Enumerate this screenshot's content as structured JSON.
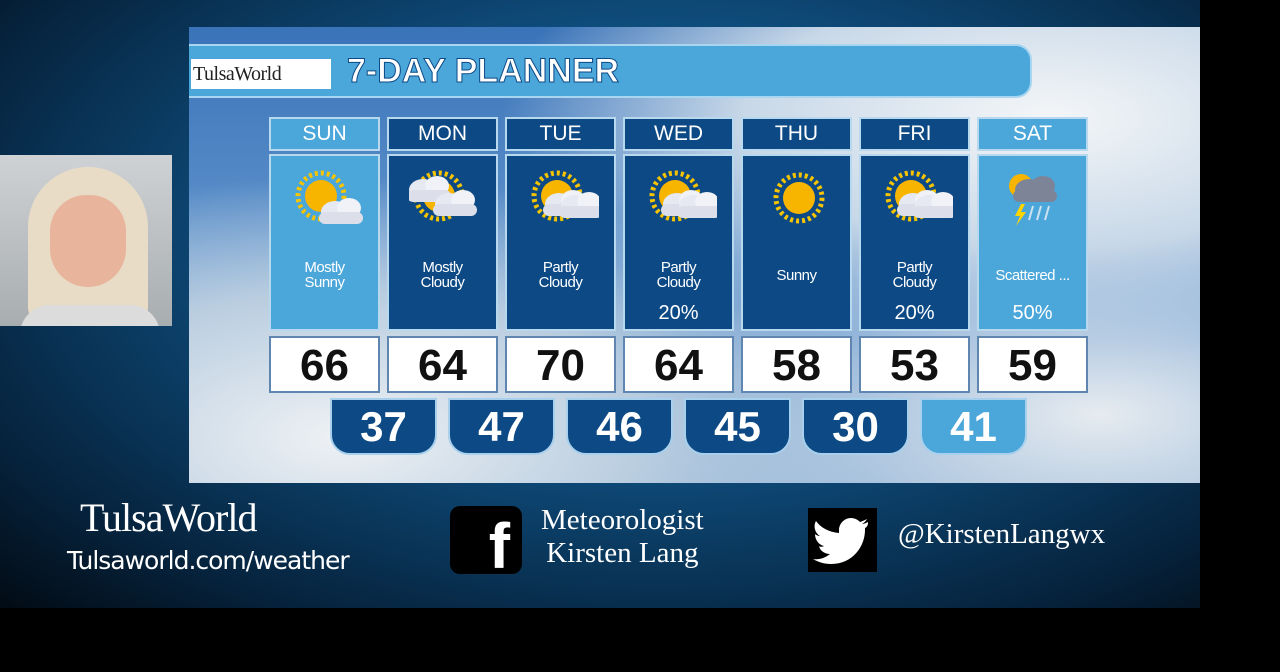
{
  "graphic": {
    "logo": "TulsaWorld",
    "title": "7-DAY PLANNER"
  },
  "days": [
    {
      "day": "SUN",
      "condition": "Mostly Sunny",
      "precip": "",
      "high": "66",
      "icon": "mostly-sunny-icon",
      "theme": "light"
    },
    {
      "day": "MON",
      "condition": "Mostly Cloudy",
      "precip": "",
      "high": "64",
      "icon": "mostly-cloudy-icon",
      "theme": "dark"
    },
    {
      "day": "TUE",
      "condition": "Partly Cloudy",
      "precip": "",
      "high": "70",
      "icon": "partly-cloudy-icon",
      "theme": "dark"
    },
    {
      "day": "WED",
      "condition": "Partly Cloudy",
      "precip": "20%",
      "high": "64",
      "icon": "partly-cloudy-icon",
      "theme": "dark"
    },
    {
      "day": "THU",
      "condition": "Sunny",
      "precip": "",
      "high": "58",
      "icon": "sunny-icon",
      "theme": "dark"
    },
    {
      "day": "FRI",
      "condition": "Partly Cloudy",
      "precip": "20%",
      "high": "53",
      "icon": "partly-cloudy-icon",
      "theme": "dark"
    },
    {
      "day": "SAT",
      "condition": "Scattered ...",
      "precip": "50%",
      "high": "59",
      "icon": "thunderstorm-icon",
      "theme": "light"
    }
  ],
  "lows": [
    {
      "v": "37",
      "theme": "dark"
    },
    {
      "v": "47",
      "theme": "dark"
    },
    {
      "v": "46",
      "theme": "dark"
    },
    {
      "v": "45",
      "theme": "dark"
    },
    {
      "v": "30",
      "theme": "dark"
    },
    {
      "v": "41",
      "theme": "light"
    }
  ],
  "footer": {
    "brand": "TulsaWorld",
    "url": "Tulsaworld.com/weather",
    "facebook_line1": "Meteorologist",
    "facebook_line2": "Kirsten Lang",
    "twitter": "@KirstenLangwx"
  },
  "colors": {
    "light": "#4ba6da",
    "dark": "#0d4a85"
  }
}
